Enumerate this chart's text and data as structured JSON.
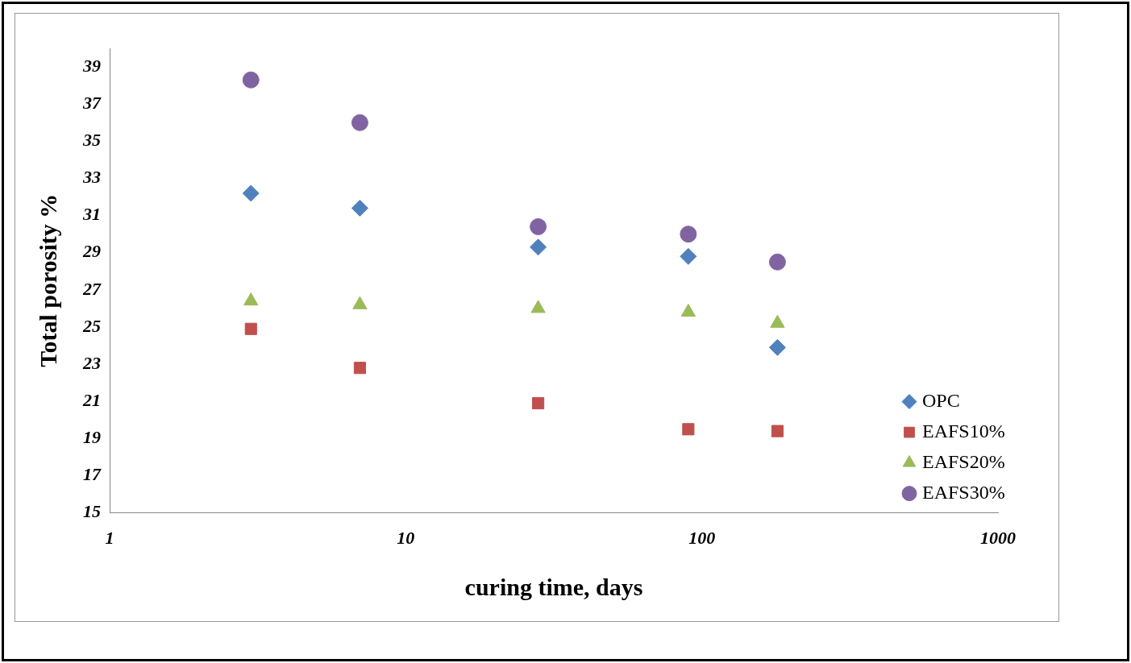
{
  "chart_data": {
    "type": "scatter",
    "xlabel": "curing time, days",
    "ylabel": "Total porosity %",
    "log": "x",
    "xlim": [
      1,
      1000
    ],
    "xticks": [
      1,
      10,
      100,
      1000
    ],
    "ylim": [
      15,
      40
    ],
    "yticks": [
      15,
      17,
      19,
      21,
      23,
      25,
      27,
      29,
      31,
      33,
      35,
      37,
      39
    ],
    "grid": false,
    "legend": "right",
    "x": [
      3,
      7,
      28,
      90,
      180
    ],
    "series": [
      {
        "name": "OPC",
        "color": "#4f81bd",
        "marker": "diamond",
        "values": [
          32.2,
          31.4,
          29.3,
          28.8,
          23.9
        ]
      },
      {
        "name": "EAFS10%",
        "color": "#c0504d",
        "marker": "square",
        "values": [
          24.9,
          22.8,
          20.9,
          19.5,
          19.4
        ]
      },
      {
        "name": "EAFS20%",
        "color": "#9bbb59",
        "marker": "triangle",
        "values": [
          26.4,
          26.2,
          26.0,
          25.8,
          25.2
        ]
      },
      {
        "name": "EAFS30%",
        "color": "#8064a2",
        "marker": "circle",
        "values": [
          38.3,
          36.0,
          30.4,
          30.0,
          28.5
        ]
      }
    ]
  }
}
